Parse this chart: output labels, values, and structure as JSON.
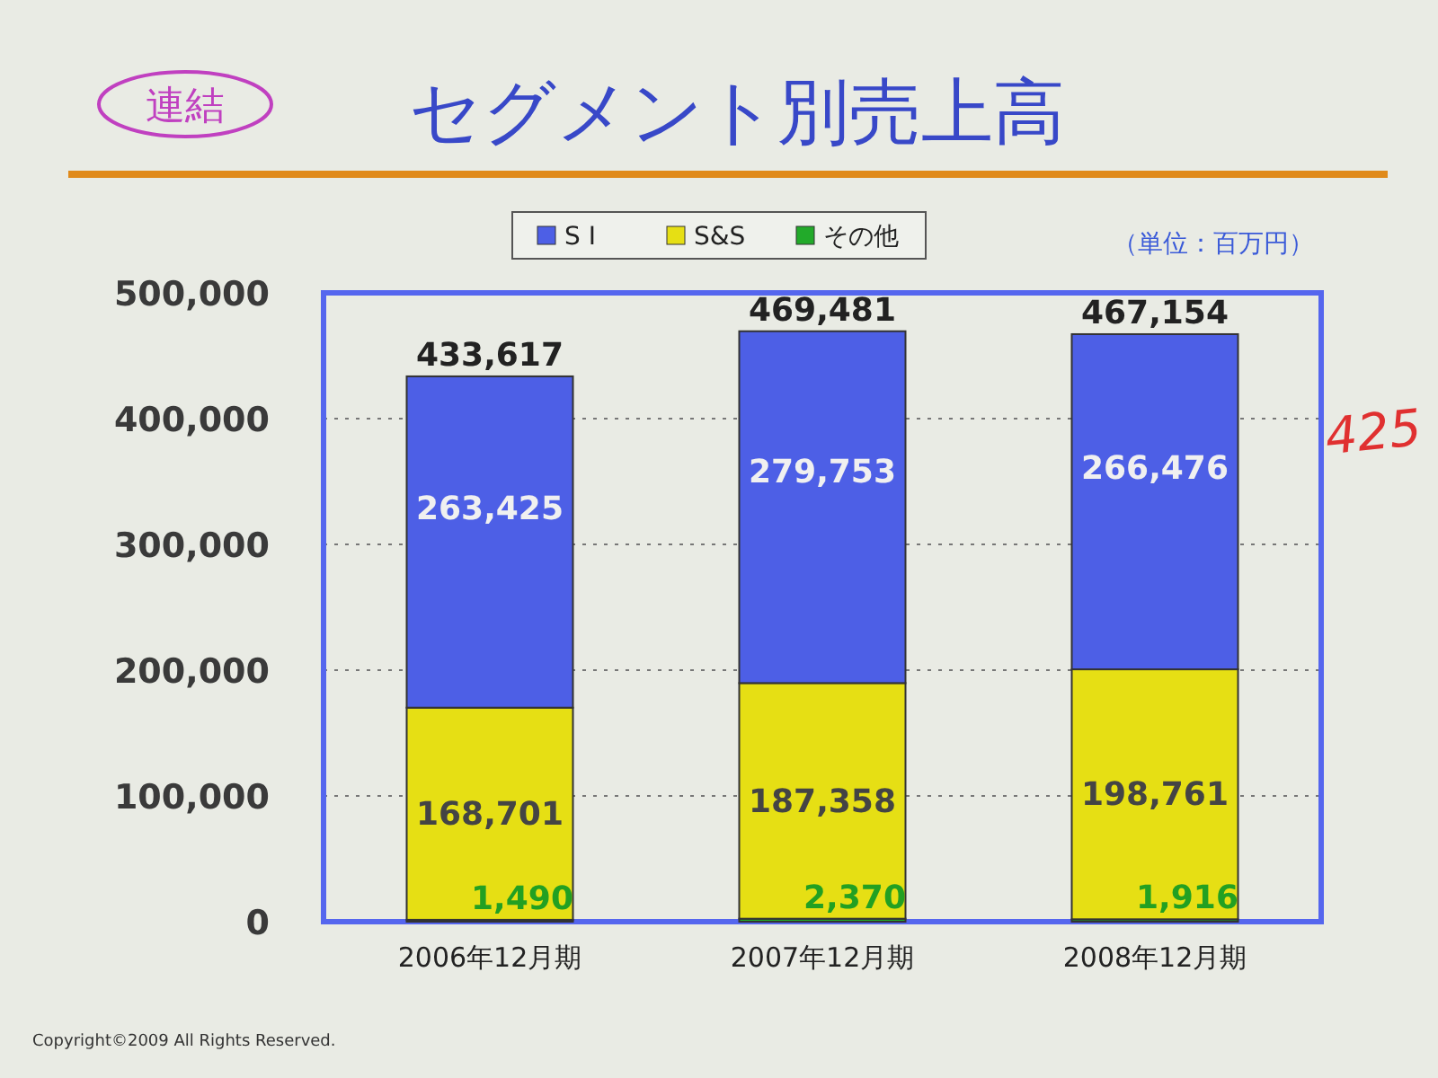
{
  "chart_data": {
    "type": "bar",
    "title": "セグメント別売上高",
    "subtitle": "連結",
    "categories": [
      "2006年12月期",
      "2007年12月期",
      "2008年12月期"
    ],
    "series": [
      {
        "name": "その他",
        "color": "#22aa2a",
        "values": [
          1490,
          2370,
          1916
        ],
        "value_labels": [
          "1,490",
          "2,370",
          "1,916"
        ]
      },
      {
        "name": "S&S",
        "color": "#e6df14",
        "values": [
          168701,
          187358,
          198761
        ],
        "value_labels": [
          "168,701",
          "187,358",
          "198,761"
        ]
      },
      {
        "name": "S I",
        "color": "#4d5fe6",
        "values": [
          263425,
          279753,
          266476
        ],
        "value_labels": [
          "263,425",
          "279,753",
          "266,476"
        ]
      }
    ],
    "stacked": true,
    "totals": [
      "433,617",
      "469,481",
      "467,154"
    ],
    "ylim": [
      0,
      500000
    ],
    "yticks": [
      0,
      {
        "value": 100000,
        "label": "100,000"
      },
      {
        "value": 200000,
        "label": "200,000"
      },
      {
        "value": 300000,
        "label": "300,000"
      },
      {
        "value": 400000,
        "label": "400,000"
      },
      {
        "value": 500000,
        "label": "500,000"
      }
    ],
    "grid": "y",
    "legend": "top",
    "annotations": [
      "（単位：百万円）",
      "425",
      "Copyright©2009 All Rights Reserved."
    ]
  }
}
